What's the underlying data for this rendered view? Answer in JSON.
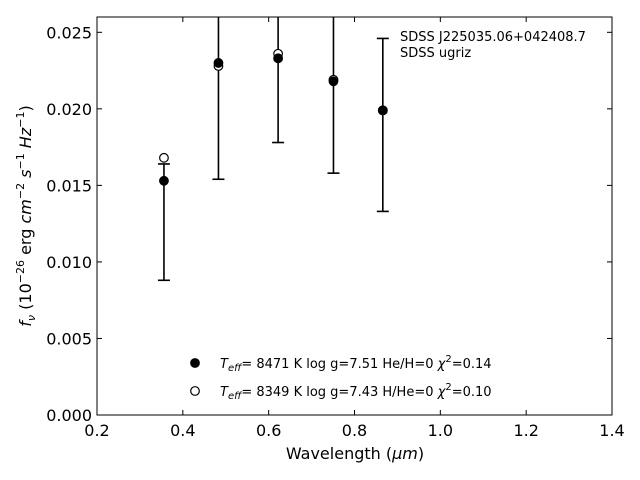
{
  "chart_data": {
    "type": "scatter",
    "xlabel_main": "Wavelength (",
    "xlabel_unit": "μm",
    "xlabel_close": ")",
    "ylabel": {
      "f": "f",
      "nu": "ν",
      "open": " (10",
      "exp1": "−26",
      "erg": " erg ",
      "cm": "cm",
      "exp2": "−2",
      "s": " s",
      "exp3": "−1",
      "hz": " Hz",
      "exp4": "−1",
      "close": ")"
    },
    "xlim": [
      0.2,
      1.4
    ],
    "ylim": [
      0.0,
      0.026
    ],
    "x_ticks": [
      {
        "v": 0.2,
        "label": "0.2"
      },
      {
        "v": 0.4,
        "label": "0.4"
      },
      {
        "v": 0.6,
        "label": "0.6"
      },
      {
        "v": 0.8,
        "label": "0.8"
      },
      {
        "v": 1.0,
        "label": "1.0"
      },
      {
        "v": 1.2,
        "label": "1.2"
      },
      {
        "v": 1.4,
        "label": "1.4"
      }
    ],
    "y_ticks": [
      {
        "v": 0.0,
        "label": "0.000"
      },
      {
        "v": 0.005,
        "label": "0.005"
      },
      {
        "v": 0.01,
        "label": "0.010"
      },
      {
        "v": 0.015,
        "label": "0.015"
      },
      {
        "v": 0.02,
        "label": "0.020"
      },
      {
        "v": 0.025,
        "label": "0.025"
      }
    ],
    "annotation": {
      "line1": "SDSS J225035.06+042408.7",
      "line2": "SDSS ugriz"
    },
    "errorbars": [
      {
        "x": 0.356,
        "low": 0.0088,
        "high": 0.0164
      },
      {
        "x": 0.483,
        "low": 0.0154,
        "high": 0.0262
      },
      {
        "x": 0.622,
        "low": 0.0178,
        "high": 0.0262
      },
      {
        "x": 0.751,
        "low": 0.0158,
        "high": 0.0262
      },
      {
        "x": 0.866,
        "low": 0.0133,
        "high": 0.0246
      }
    ],
    "series": [
      {
        "marker": "filled",
        "x": [
          0.356,
          0.483,
          0.622,
          0.751,
          0.866
        ],
        "values": [
          0.0153,
          0.023,
          0.0233,
          0.0218,
          0.0199
        ]
      },
      {
        "marker": "open",
        "x": [
          0.356,
          0.483,
          0.622,
          0.751,
          0.866
        ],
        "values": [
          0.0168,
          0.0228,
          0.0236,
          0.0219,
          0.0199
        ]
      }
    ],
    "legend": {
      "placement": "lower-center",
      "entries": [
        {
          "marker": "filled",
          "teff_sym": "T",
          "teff_sub": "eff",
          "eq": "=  8471 K  log g=7.51  He/H=0  ",
          "chi": "χ",
          "chi_exp": "2",
          "chi_val": "=0.14"
        },
        {
          "marker": "open",
          "teff_sym": "T",
          "teff_sub": "eff",
          "eq": "=  8349 K  log g=7.43  H/He=0  ",
          "chi": "χ",
          "chi_exp": "2",
          "chi_val": "=0.10"
        }
      ]
    }
  }
}
